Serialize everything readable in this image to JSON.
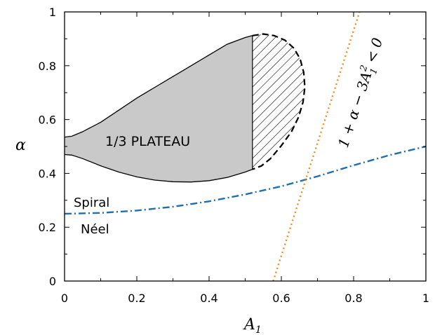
{
  "chart_data": {
    "type": "line",
    "xlabel": "A",
    "xlabel_sub": "1",
    "ylabel": "α",
    "xlim": [
      0,
      1
    ],
    "ylim": [
      0,
      1
    ],
    "x_ticks": [
      {
        "value": 0,
        "label": "0"
      },
      {
        "value": 0.2,
        "label": "0.2"
      },
      {
        "value": 0.4,
        "label": "0.4"
      },
      {
        "value": 0.6,
        "label": "0.6"
      },
      {
        "value": 0.8,
        "label": "0.8"
      },
      {
        "value": 1,
        "label": "1"
      }
    ],
    "y_ticks": [
      {
        "value": 0,
        "label": "0"
      },
      {
        "value": 0.2,
        "label": "0.2"
      },
      {
        "value": 0.4,
        "label": "0.4"
      },
      {
        "value": 0.6,
        "label": "0.6"
      },
      {
        "value": 0.8,
        "label": "0.8"
      },
      {
        "value": 1,
        "label": "1"
      }
    ],
    "grid": false,
    "region_label": "1/3 PLATEAU",
    "upper_phase_label": "Spiral",
    "lower_phase_label": "Néel",
    "condition_label": {
      "text": "1 + α − 3A",
      "sub": "1",
      "sup": "2",
      "tail": " < 0"
    },
    "plateau_upper": [
      [
        0,
        0.535
      ],
      [
        0.02,
        0.538
      ],
      [
        0.05,
        0.555
      ],
      [
        0.1,
        0.59
      ],
      [
        0.15,
        0.635
      ],
      [
        0.2,
        0.68
      ],
      [
        0.25,
        0.72
      ],
      [
        0.3,
        0.76
      ],
      [
        0.35,
        0.8
      ],
      [
        0.4,
        0.84
      ],
      [
        0.45,
        0.88
      ],
      [
        0.5,
        0.905
      ],
      [
        0.52,
        0.912
      ]
    ],
    "plateau_lower": [
      [
        0,
        0.47
      ],
      [
        0.02,
        0.468
      ],
      [
        0.05,
        0.455
      ],
      [
        0.1,
        0.428
      ],
      [
        0.15,
        0.405
      ],
      [
        0.2,
        0.387
      ],
      [
        0.25,
        0.375
      ],
      [
        0.3,
        0.369
      ],
      [
        0.35,
        0.368
      ],
      [
        0.4,
        0.373
      ],
      [
        0.45,
        0.385
      ],
      [
        0.5,
        0.405
      ],
      [
        0.52,
        0.415
      ]
    ],
    "plateau_dashed": [
      [
        0.52,
        0.912
      ],
      [
        0.55,
        0.918
      ],
      [
        0.58,
        0.912
      ],
      [
        0.61,
        0.895
      ],
      [
        0.635,
        0.865
      ],
      [
        0.652,
        0.825
      ],
      [
        0.662,
        0.775
      ],
      [
        0.665,
        0.72
      ],
      [
        0.66,
        0.665
      ],
      [
        0.648,
        0.61
      ],
      [
        0.628,
        0.555
      ],
      [
        0.6,
        0.503
      ],
      [
        0.57,
        0.455
      ],
      [
        0.545,
        0.428
      ],
      [
        0.52,
        0.415
      ]
    ],
    "series": [
      {
        "name": "",
        "style": "dash-dot",
        "color": "#1f6fb0",
        "points": [
          [
            0,
            0.25
          ],
          [
            0.1,
            0.253
          ],
          [
            0.2,
            0.262
          ],
          [
            0.3,
            0.276
          ],
          [
            0.4,
            0.296
          ],
          [
            0.5,
            0.322
          ],
          [
            0.6,
            0.352
          ],
          [
            0.7,
            0.389
          ],
          [
            0.8,
            0.43
          ],
          [
            0.9,
            0.468
          ],
          [
            1,
            0.5
          ]
        ]
      },
      {
        "name": "",
        "style": "dotted",
        "color": "#f08a24",
        "points": [
          [
            0.5774,
            0
          ],
          [
            0.8165,
            1
          ]
        ]
      }
    ]
  }
}
